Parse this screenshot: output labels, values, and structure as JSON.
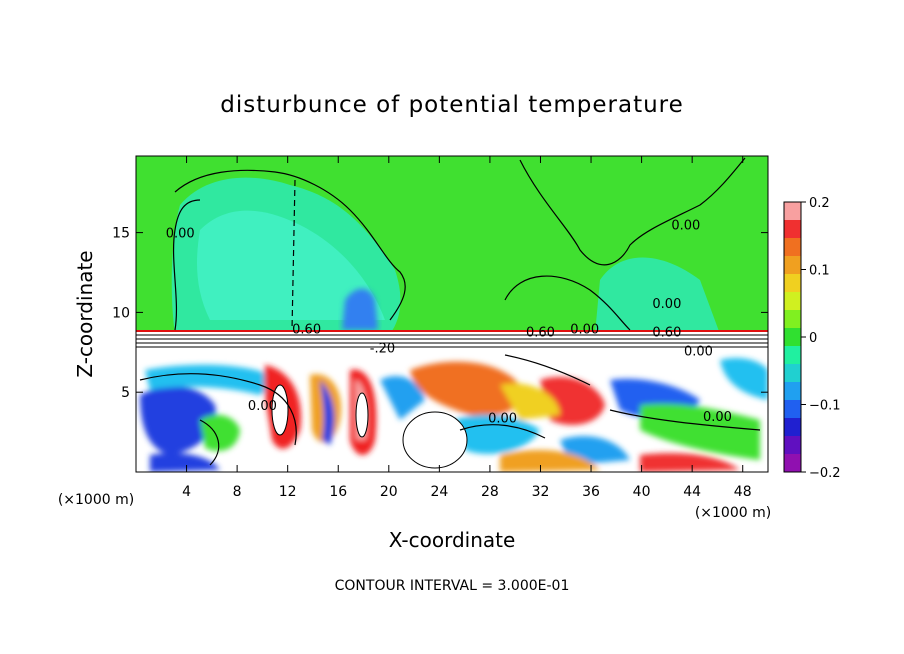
{
  "chart_data": {
    "type": "heatmap",
    "title": "disturbunce of potential temperature",
    "xlabel": "X-coordinate",
    "ylabel": "Z-coordinate",
    "x_unit": "(×1000 m)",
    "z_unit": "(×1000 m)",
    "xlim": [
      0,
      50
    ],
    "ylim": [
      0,
      19.8
    ],
    "x_ticks": [
      4,
      8,
      12,
      16,
      20,
      24,
      28,
      32,
      36,
      40,
      44,
      48
    ],
    "y_ticks": [
      5,
      10,
      15
    ],
    "colorbar": {
      "range": [
        -0.2,
        0.2
      ],
      "ticks": [
        0.2,
        0.1,
        0,
        -0.1,
        -0.2
      ],
      "tick_labels": [
        "0.2",
        "0.1",
        "0",
        "−0.1",
        "−0.2"
      ],
      "colors": [
        "#f8a0a0",
        "#f03030",
        "#f07020",
        "#f0a020",
        "#f0d020",
        "#d0f020",
        "#80f020",
        "#30e030",
        "#20f0a0",
        "#20d0d0",
        "#20a0f0",
        "#2060f0",
        "#2020d0",
        "#6010c0",
        "#9010b0"
      ]
    },
    "contour_labels": [
      {
        "text": "0.00",
        "x": 3.5,
        "z": 15
      },
      {
        "text": "0.60",
        "x": 13.5,
        "z": 9
      },
      {
        "text": "0.60",
        "x": 32,
        "z": 8.8
      },
      {
        "text": "0.00",
        "x": 35.5,
        "z": 9
      },
      {
        "text": "0.60",
        "x": 42,
        "z": 8.8
      },
      {
        "text": "0.00",
        "x": 44.5,
        "z": 7.6
      },
      {
        "text": "0.00",
        "x": 43.5,
        "z": 15.5
      },
      {
        "text": "-.20",
        "x": 19.5,
        "z": 7.8
      },
      {
        "text": "0.00",
        "x": 29,
        "z": 3.4
      },
      {
        "text": "0.00",
        "x": 46,
        "z": 3.5
      },
      {
        "text": "0.00",
        "x": 42,
        "z": 10.6
      },
      {
        "text": "0.00",
        "x": 10,
        "z": 4.2
      }
    ],
    "legend_position": "right",
    "grid": false
  },
  "footer": {
    "contour_interval": "CONTOUR INTERVAL = 3.000E-01"
  }
}
